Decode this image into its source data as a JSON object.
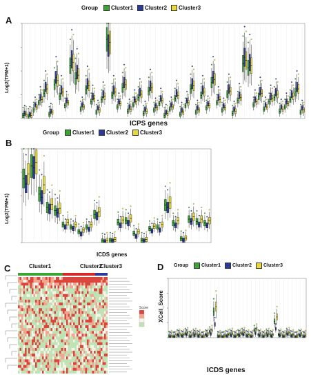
{
  "panels": {
    "A": {
      "letter": "A"
    },
    "B": {
      "letter": "B"
    },
    "C": {
      "letter": "C"
    },
    "D": {
      "letter": "D"
    }
  },
  "legend": {
    "title": "Group",
    "items": [
      {
        "label": "Cluster1",
        "color": "#3aa535"
      },
      {
        "label": "Cluster2",
        "color": "#2b3a9a"
      },
      {
        "label": "Cluster3",
        "color": "#e7d93a"
      }
    ]
  },
  "chart_data": [
    {
      "id": "A",
      "type": "box",
      "title": "",
      "xlabel": "ICPS genes",
      "ylabel": "Log2(TPM+1)",
      "ylim": [
        0,
        9
      ],
      "n_categories": 54,
      "series": [
        {
          "name": "Cluster1",
          "medians": [
            0.3,
            0.2,
            0.8,
            1.5,
            2.4,
            0.4,
            3.2,
            2.1,
            1.2,
            5.0,
            3.8,
            0.9,
            2.7,
            1.6,
            0.6,
            1.8,
            7.5,
            2.2,
            1.1,
            2.9,
            0.7,
            1.3,
            2.0,
            0.5,
            2.6,
            0.8,
            1.4,
            0.3,
            0.9,
            1.9,
            0.4,
            1.2,
            2.8,
            0.6,
            2.2,
            1.0,
            3.4,
            1.5,
            0.8,
            2.3,
            0.5,
            1.7,
            5.2,
            4.8,
            1.3,
            2.1,
            0.9,
            1.6,
            2.0,
            0.7,
            1.1,
            1.8,
            2.5,
            0.6
          ]
        },
        {
          "name": "Cluster2",
          "medians": [
            0.5,
            0.4,
            1.3,
            2.0,
            3.0,
            0.7,
            3.9,
            2.7,
            1.7,
            5.6,
            4.4,
            1.3,
            3.3,
            2.1,
            1.0,
            2.3,
            6.9,
            2.7,
            1.6,
            3.4,
            1.1,
            1.8,
            2.5,
            0.9,
            3.1,
            1.2,
            1.9,
            0.6,
            1.3,
            2.4,
            0.8,
            1.7,
            3.3,
            1.0,
            2.7,
            1.4,
            3.9,
            2.0,
            1.2,
            2.8,
            0.9,
            2.2,
            5.8,
            5.3,
            1.8,
            2.6,
            1.3,
            2.1,
            2.5,
            1.1,
            1.6,
            2.3,
            3.0,
            1.0
          ]
        },
        {
          "name": "Cluster3",
          "medians": [
            0.4,
            0.3,
            1.1,
            1.8,
            2.8,
            0.6,
            3.6,
            2.5,
            1.5,
            5.3,
            4.1,
            1.1,
            3.1,
            1.9,
            0.8,
            2.1,
            7.2,
            2.5,
            1.4,
            3.2,
            0.9,
            1.6,
            2.3,
            0.7,
            2.9,
            1.0,
            1.7,
            0.5,
            1.1,
            2.2,
            0.6,
            1.5,
            3.1,
            0.8,
            2.5,
            1.2,
            3.7,
            1.8,
            1.0,
            2.6,
            0.7,
            2.0,
            5.5,
            5.0,
            1.6,
            2.4,
            1.1,
            1.9,
            2.3,
            0.9,
            1.4,
            2.1,
            2.8,
            0.8
          ]
        }
      ]
    },
    {
      "id": "B",
      "type": "box",
      "title": "",
      "xlabel": "ICDS genes",
      "ylabel": "Log2(TPM+1)",
      "ylim": [
        0,
        12
      ],
      "n_categories": 24,
      "series": [
        {
          "name": "Cluster1",
          "medians": [
            8.2,
            9.8,
            6.2,
            4.5,
            4.1,
            2.3,
            2.0,
            1.4,
            2.0,
            3.6,
            0.2,
            0.3,
            2.6,
            2.8,
            1.2,
            0.3,
            1.8,
            2.0,
            4.8,
            2.5,
            0.5,
            3.0,
            2.7,
            2.5
          ]
        },
        {
          "name": "Cluster2",
          "medians": [
            7.5,
            9.6,
            5.8,
            4.3,
            3.8,
            2.0,
            1.8,
            1.1,
            1.7,
            3.4,
            0.1,
            0.2,
            2.2,
            2.5,
            0.8,
            0.2,
            1.5,
            1.6,
            4.5,
            2.2,
            0.3,
            2.7,
            2.3,
            2.2
          ]
        },
        {
          "name": "Cluster3",
          "medians": [
            8.8,
            10.3,
            7.4,
            4.9,
            4.4,
            2.6,
            2.3,
            1.6,
            2.3,
            3.9,
            0.3,
            0.4,
            2.9,
            3.1,
            1.4,
            0.4,
            2.1,
            2.3,
            5.1,
            2.8,
            0.6,
            3.3,
            3.0,
            2.8
          ]
        }
      ]
    },
    {
      "id": "C",
      "type": "heatmap",
      "title": "",
      "column_groups": [
        "Cluster1",
        "Cluster2",
        "Cluster3"
      ],
      "legend_title": "Score"
    },
    {
      "id": "D",
      "type": "box",
      "title": "",
      "xlabel": "ICDS genes",
      "ylabel": "XCell_Score",
      "ylim": [
        0,
        0.8
      ],
      "n_categories": 34,
      "series": [
        {
          "name": "Cluster1",
          "medians": [
            0.02,
            0.01,
            0.04,
            0.03,
            0.06,
            0.02,
            0.05,
            0.03,
            0.01,
            0.04,
            0.08,
            0.35,
            0.02,
            0.01,
            0.03,
            0.05,
            0.02,
            0.04,
            0.06,
            0.03,
            0.02,
            0.1,
            0.04,
            0.02,
            0.05,
            0.03,
            0.22,
            0.04,
            0.02,
            0.06,
            0.03,
            0.01,
            0.04,
            0.02
          ]
        },
        {
          "name": "Cluster2",
          "medians": [
            0.01,
            0.01,
            0.03,
            0.02,
            0.04,
            0.01,
            0.03,
            0.02,
            0.01,
            0.03,
            0.05,
            0.18,
            0.01,
            0.01,
            0.02,
            0.03,
            0.01,
            0.03,
            0.04,
            0.02,
            0.01,
            0.06,
            0.03,
            0.01,
            0.03,
            0.02,
            0.12,
            0.03,
            0.01,
            0.04,
            0.02,
            0.01,
            0.03,
            0.01
          ]
        },
        {
          "name": "Cluster3",
          "medians": [
            0.03,
            0.02,
            0.05,
            0.04,
            0.07,
            0.03,
            0.06,
            0.04,
            0.02,
            0.05,
            0.1,
            0.42,
            0.03,
            0.02,
            0.04,
            0.06,
            0.03,
            0.05,
            0.07,
            0.04,
            0.03,
            0.12,
            0.05,
            0.03,
            0.06,
            0.04,
            0.28,
            0.05,
            0.03,
            0.07,
            0.04,
            0.02,
            0.05,
            0.03
          ]
        }
      ]
    }
  ]
}
